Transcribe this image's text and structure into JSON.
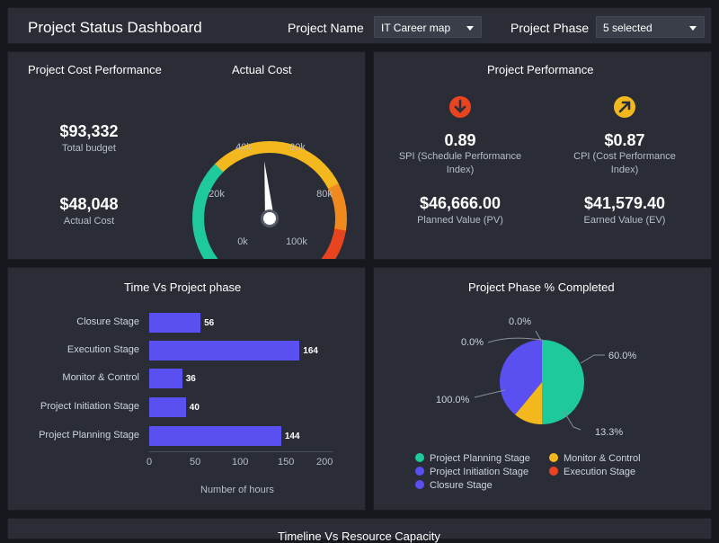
{
  "header": {
    "title": "Project Status Dashboard",
    "project_name_label": "Project Name",
    "project_name_value": "IT Career map",
    "project_phase_label": "Project Phase",
    "project_phase_value": "5 selected"
  },
  "cost_panel": {
    "title": "Project Cost Performance",
    "total_budget_value": "$93,332",
    "total_budget_label": "Total budget",
    "actual_cost_value": "$48,048",
    "actual_cost_label": "Actual Cost"
  },
  "gauge": {
    "title": "Actual Cost",
    "ticks": [
      "0k",
      "20k",
      "40k",
      "60k",
      "80k",
      "100k"
    ],
    "value": 48048,
    "max": 100000
  },
  "performance_panel": {
    "title": "Project Performance",
    "spi_value": "0.89",
    "spi_label": "SPI (Schedule Performance Index)",
    "cpi_value": "$0.87",
    "cpi_label": "CPI (Cost Performance Index)",
    "pv_value": "$46,666.00",
    "pv_label": "Planned Value (PV)",
    "ev_value": "$41,579.40",
    "ev_label": "Earned Value (EV)",
    "colors": {
      "down": "#e8441f",
      "up": "#f2b81d"
    }
  },
  "time_panel": {
    "title": "Time Vs Project phase",
    "xlabel": "Number of hours",
    "ticks": [
      "0",
      "50",
      "100",
      "150",
      "200"
    ]
  },
  "pie_panel": {
    "title": "Project Phase % Completed",
    "labels": [
      "0.0%",
      "0.0%",
      "60.0%",
      "13.3%",
      "100.0%"
    ],
    "legend": [
      "Project Planning Stage",
      "Monitor & Control",
      "Project Initiation Stage",
      "Execution Stage",
      "Closure Stage"
    ]
  },
  "bottom_panel": {
    "title": "Timeline Vs Resource Capacity"
  },
  "chart_data": [
    {
      "type": "bar",
      "title": "Time Vs Project phase",
      "xlabel": "Number of hours",
      "ylabel": "",
      "categories": [
        "Closure Stage",
        "Execution Stage",
        "Monitor & Control",
        "Project Initiation Stage",
        "Project Planning Stage"
      ],
      "values": [
        56,
        164,
        36,
        40,
        144
      ],
      "xlim": [
        0,
        200
      ],
      "orientation": "horizontal",
      "color": "#5a4ff0"
    },
    {
      "type": "pie",
      "title": "Project Phase % Completed",
      "categories": [
        "Project Planning Stage",
        "Monitor & Control",
        "Project Initiation Stage",
        "Execution Stage",
        "Closure Stage"
      ],
      "values": [
        60.0,
        13.3,
        100.0,
        0.0,
        0.0
      ],
      "colors": [
        "#1ec99a",
        "#f2b81d",
        "#5a4ff0",
        "#e8441f",
        "#5a4ff0"
      ],
      "legend": "bottom"
    }
  ]
}
